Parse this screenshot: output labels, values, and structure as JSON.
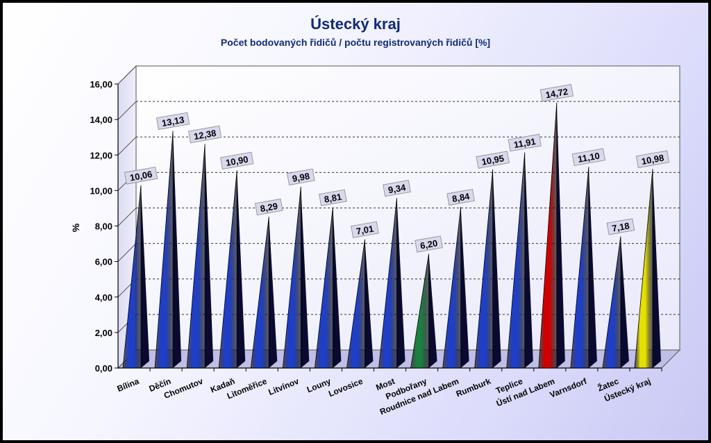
{
  "chart_data": {
    "type": "bar",
    "title": "Ústecký kraj",
    "subtitle": "Počet bodovaných řidičů / počtu registrovaných řidičů [%]",
    "ylabel": "%",
    "xlabel": "",
    "ylim": [
      0,
      16
    ],
    "yticks": [
      "0,00",
      "2,00",
      "4,00",
      "6,00",
      "8,00",
      "10,00",
      "12,00",
      "14,00",
      "16,00"
    ],
    "grid": true,
    "legend": "none",
    "categories": [
      "Bílina",
      "Děčín",
      "Chomutov",
      "Kadaň",
      "Litoměřice",
      "Litvínov",
      "Louny",
      "Lovosice",
      "Most",
      "Podbořany",
      "Roudnice nad Labem",
      "Rumburk",
      "Teplice",
      "Ústí nad Labem",
      "Varnsdorf",
      "Žatec",
      "Ústecký kraj"
    ],
    "values": [
      10.06,
      13.13,
      12.38,
      10.9,
      8.29,
      9.98,
      8.81,
      7.01,
      9.34,
      6.2,
      8.84,
      10.95,
      11.91,
      14.72,
      11.1,
      7.18,
      10.98
    ],
    "labels": [
      "10,06",
      "13,13",
      "12,38",
      "10,90",
      "8,29",
      "9,98",
      "8,81",
      "7,01",
      "9,34",
      "6,20",
      "8,84",
      "10,95",
      "11,91",
      "14,72",
      "11,10",
      "7,18",
      "10,98"
    ],
    "colors": [
      "#1f3fc8",
      "#1f3fc8",
      "#1f3fc8",
      "#1f3fc8",
      "#1f3fc8",
      "#1f3fc8",
      "#1f3fc8",
      "#1f3fc8",
      "#1f3fc8",
      "#1a8040",
      "#1f3fc8",
      "#1f3fc8",
      "#1f3fc8",
      "#d00000",
      "#1f3fc8",
      "#1f3fc8",
      "#e6e000"
    ]
  }
}
